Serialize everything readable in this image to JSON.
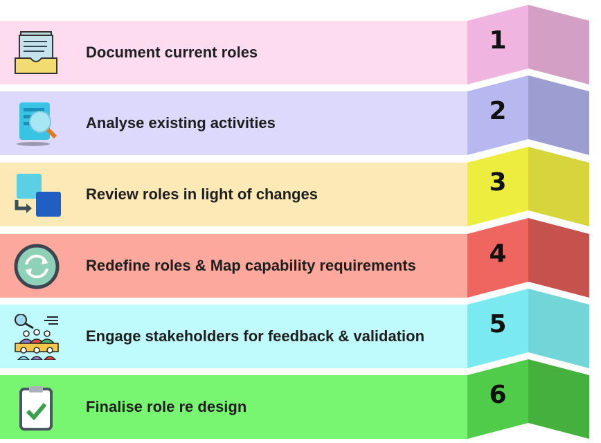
{
  "steps": [
    {
      "number": "1",
      "label": "Document current roles",
      "icon": "document-tray-icon",
      "band": "#fddcf0",
      "front": "#efb5e0",
      "back": "#d49fc4"
    },
    {
      "number": "2",
      "label": "Analyse existing activities",
      "icon": "document-search-icon",
      "band": "#ddd9fd",
      "front": "#b8b8f0",
      "back": "#9c9dd0"
    },
    {
      "number": "3",
      "label": "Review roles in light of changes",
      "icon": "transfer-squares-icon",
      "band": "#fde9b6",
      "front": "#eded40",
      "back": "#d6d63c"
    },
    {
      "number": "4",
      "label": "Redefine roles & Map capability requirements",
      "icon": "refresh-cycle-icon",
      "band": "#fda89c",
      "front": "#ef6661",
      "back": "#c5524c"
    },
    {
      "number": "5",
      "label": "Engage stakeholders for feedback  & validation",
      "icon": "stakeholders-meeting-icon",
      "band": "#bffafd",
      "front": "#7beaf0",
      "back": "#72d5d8"
    },
    {
      "number": "6",
      "label": "Finalise role re design",
      "icon": "clipboard-check-icon",
      "band": "#78f571",
      "front": "#50cc4a",
      "back": "#45b03e"
    }
  ]
}
